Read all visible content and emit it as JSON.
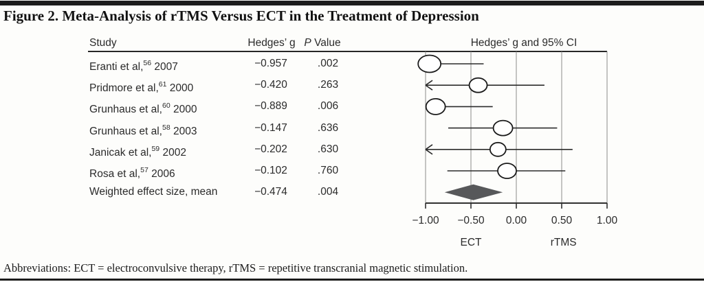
{
  "figure": {
    "title": "Figure 2. Meta-Analysis of rTMS Versus ECT in the Treatment of Depression",
    "footnote": "Abbreviations: ECT = electroconvulsive therapy, rTMS = repetitive transcranial magnetic stimulation."
  },
  "table": {
    "headers": {
      "study": "Study",
      "hedges_g": "Hedges’ g",
      "p_italic": "P",
      "p_rest": " Value"
    },
    "rows": [
      {
        "study": "Eranti et al,",
        "ref": "56",
        "year": "2007",
        "g": "−0.957",
        "p": ".002"
      },
      {
        "study": "Pridmore et al,",
        "ref": "61",
        "year": "2000",
        "g": "−0.420",
        "p": ".263"
      },
      {
        "study": "Grunhaus et al,",
        "ref": "60",
        "year": "2000",
        "g": "−0.889",
        "p": ".006"
      },
      {
        "study": "Grunhaus et al,",
        "ref": "58",
        "year": "2003",
        "g": "−0.147",
        "p": ".636"
      },
      {
        "study": "Janicak et al,",
        "ref": "59",
        "year": "2002",
        "g": "−0.202",
        "p": ".630"
      },
      {
        "study": "Rosa et al,",
        "ref": "57",
        "year": "2006",
        "g": "−0.102",
        "p": ".760"
      },
      {
        "study": "Weighted effect size, mean",
        "ref": "",
        "year": "",
        "g": "−0.474",
        "p": ".004"
      }
    ]
  },
  "chart_data": {
    "type": "forest",
    "title": "Hedges’ g and 95% CI",
    "x_axis": {
      "min": -1.0,
      "max": 1.0,
      "ticks": [
        {
          "value": -1.0,
          "label": "−1.00"
        },
        {
          "value": -0.5,
          "label": "−0.50"
        },
        {
          "value": 0.0,
          "label": "0.00"
        },
        {
          "value": 0.5,
          "label": "0.50"
        },
        {
          "value": 1.0,
          "label": "1.00"
        }
      ],
      "group_labels": [
        {
          "label": "ECT",
          "value": -0.5
        },
        {
          "label": "rTMS",
          "value": 0.52
        }
      ]
    },
    "studies": [
      {
        "name": "Eranti et al, 2007",
        "g": -0.957,
        "p_value": 0.002,
        "ci_low": null,
        "ci_high": -0.36,
        "arrow_left": false,
        "marker_w": 33,
        "marker_h": 25
      },
      {
        "name": "Pridmore et al, 2000",
        "g": -0.42,
        "p_value": 0.263,
        "ci_low": null,
        "ci_high": 0.31,
        "arrow_left": true,
        "marker_w": 26,
        "marker_h": 21
      },
      {
        "name": "Grunhaus et al, 2000",
        "g": -0.889,
        "p_value": 0.006,
        "ci_low": null,
        "ci_high": -0.26,
        "arrow_left": false,
        "marker_w": 28,
        "marker_h": 23
      },
      {
        "name": "Grunhaus et al, 2003",
        "g": -0.147,
        "p_value": 0.636,
        "ci_low": -0.75,
        "ci_high": 0.45,
        "arrow_left": false,
        "marker_w": 28,
        "marker_h": 22
      },
      {
        "name": "Janicak et al, 2002",
        "g": -0.202,
        "p_value": 0.63,
        "ci_low": null,
        "ci_high": 0.62,
        "arrow_left": true,
        "marker_w": 23,
        "marker_h": 20
      },
      {
        "name": "Rosa et al, 2006",
        "g": -0.102,
        "p_value": 0.76,
        "ci_low": -0.76,
        "ci_high": 0.54,
        "arrow_left": false,
        "marker_w": 27,
        "marker_h": 22
      }
    ],
    "summary": {
      "name": "Weighted effect size, mean",
      "g": -0.474,
      "p_value": 0.004,
      "ci_low": -0.79,
      "ci_high": -0.15,
      "shape": "diamond"
    },
    "layout_hints": {
      "grid": true,
      "legend": false
    },
    "colors": {
      "marker_stroke": "#1a1a1a",
      "marker_fill": "#ffffff",
      "diamond_fill": "#57585a",
      "gridline": "#8a8a8a",
      "axis": "#2f2f2f",
      "ci_line": "#2b2b2b",
      "bar": "#1c1c1c"
    }
  }
}
